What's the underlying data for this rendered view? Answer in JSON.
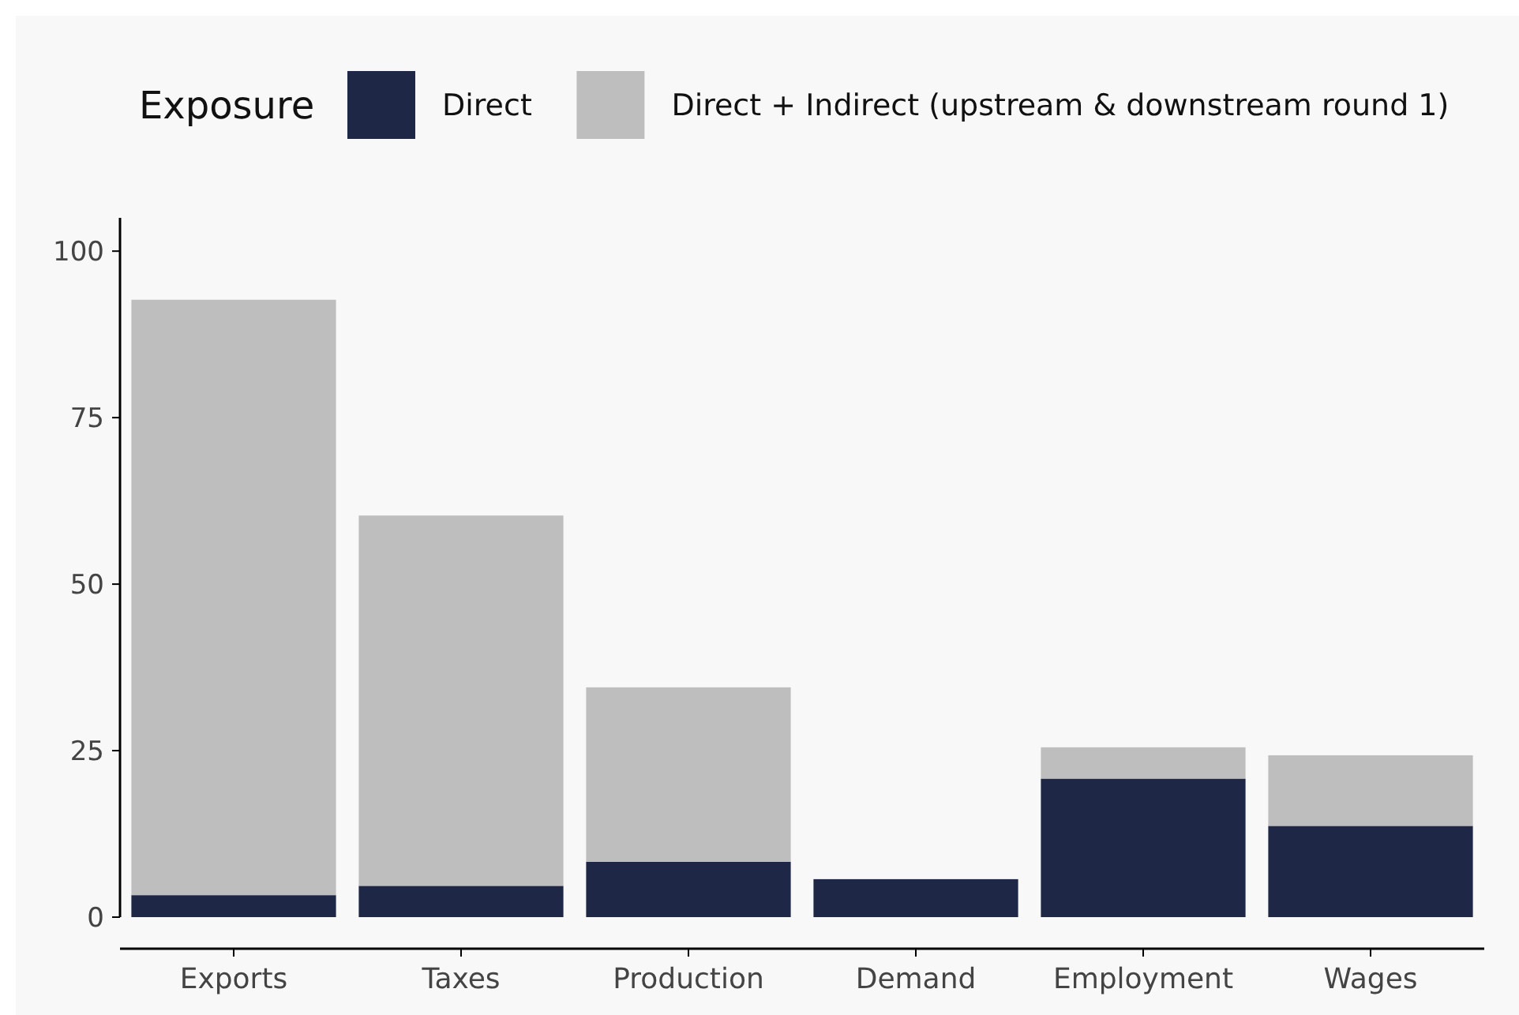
{
  "chart_data": {
    "type": "bar",
    "stacked": true,
    "legend_title": "Exposure",
    "legend": "top",
    "categories": [
      "Exports",
      "Taxes",
      "Production",
      "Demand",
      "Employment",
      "Wages"
    ],
    "series": [
      {
        "name": "Direct",
        "color": "#1f2747",
        "values": [
          3.3,
          4.7,
          8.3,
          5.7,
          20.8,
          13.7
        ]
      },
      {
        "name": "Direct + Indirect (upstream & downstream round 1)",
        "color": "#bebebe",
        "values": [
          89.4,
          55.6,
          26.2,
          0,
          4.7,
          10.6
        ]
      }
    ],
    "ylim": [
      0,
      105
    ],
    "yticks": [
      0,
      25,
      50,
      75,
      100
    ],
    "grid": false
  }
}
